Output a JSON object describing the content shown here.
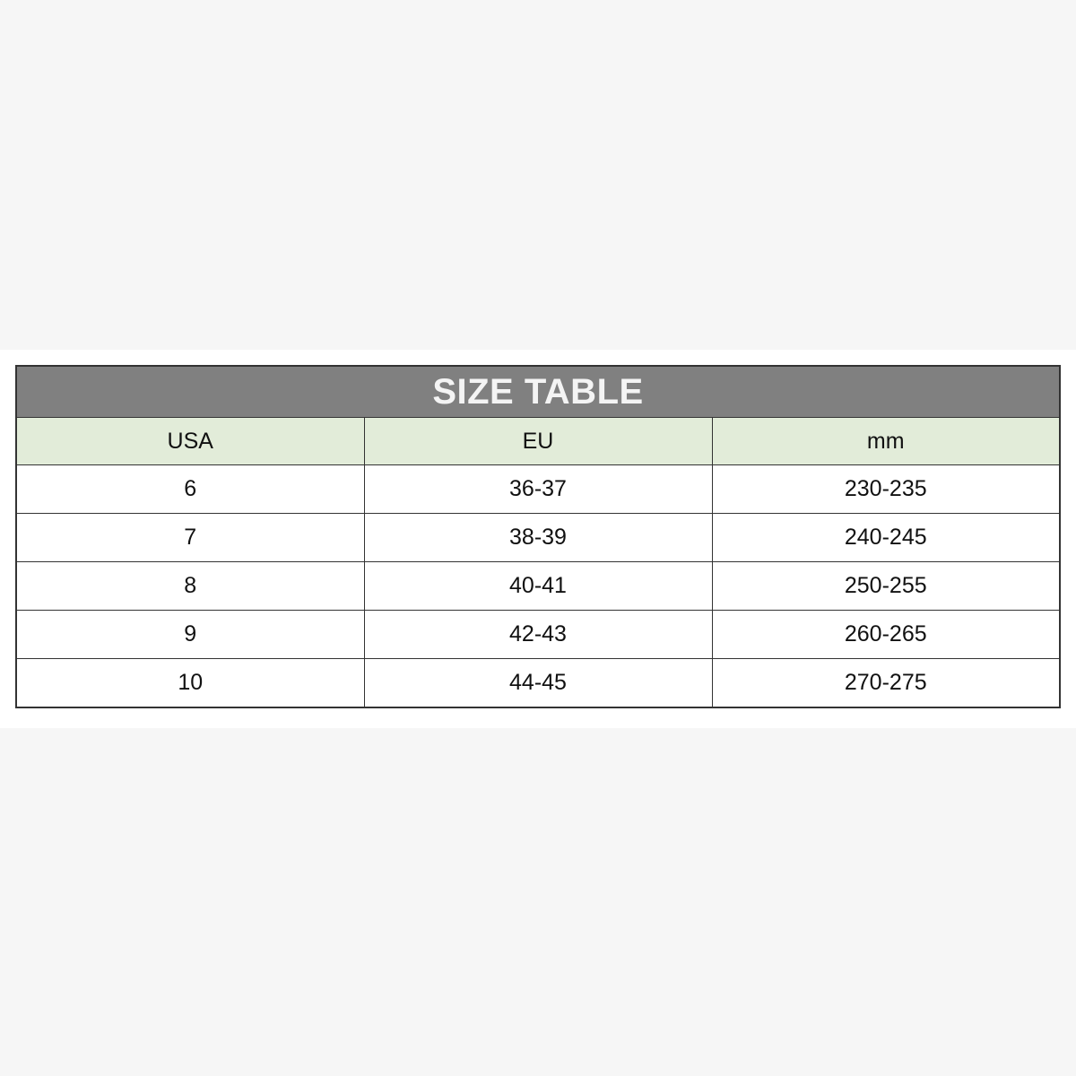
{
  "title": "SIZE TABLE",
  "columns": [
    "USA",
    "EU",
    "mm"
  ],
  "rows": [
    [
      "6",
      "36-37",
      "230-235"
    ],
    [
      "7",
      "38-39",
      "240-245"
    ],
    [
      "8",
      "40-41",
      "250-255"
    ],
    [
      "9",
      "42-43",
      "260-265"
    ],
    [
      "10",
      "44-45",
      "270-275"
    ]
  ],
  "colors": {
    "title_bg": "#808080",
    "header_bg": "#e2ecd9"
  }
}
